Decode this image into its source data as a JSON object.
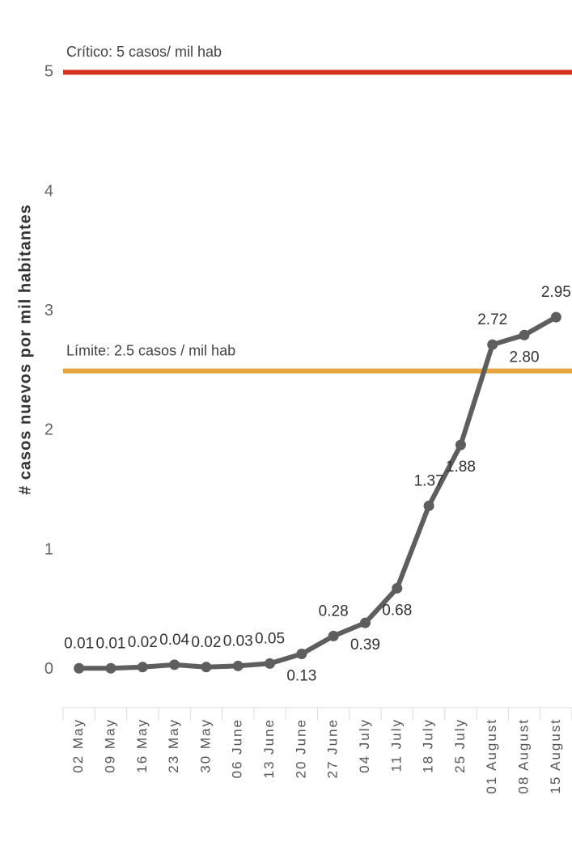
{
  "chart_data": {
    "type": "line",
    "y_label": "# casos nuevos por mil habitantes",
    "categories": [
      "02 May",
      "09 May",
      "16 May",
      "23 May",
      "30 May",
      "06 June",
      "13 June",
      "20 June",
      "27 June",
      "04 July",
      "11 July",
      "18 July",
      "25 July",
      "01 August",
      "08 August",
      "15 August"
    ],
    "series": [
      {
        "name": "casos",
        "color": "#5e5e5e",
        "values": [
          0.01,
          0.01,
          0.02,
          0.04,
          0.02,
          0.03,
          0.05,
          0.13,
          0.28,
          0.39,
          0.68,
          1.37,
          1.88,
          2.72,
          2.8,
          2.95
        ],
        "value_labels": [
          "0.01",
          "0.01",
          "0.02",
          "0.04",
          "0.02",
          "0.03",
          "0.05",
          "0.13",
          "0.28",
          "0.39",
          "0.68",
          "1.37",
          "1.88",
          "2.72",
          "2.80",
          "2.95"
        ]
      }
    ],
    "reference_lines": [
      {
        "value": 5,
        "label": "Crítico: 5 casos/ mil hab",
        "color": "#d7301f"
      },
      {
        "value": 2.5,
        "label": "Límite: 2.5 casos / mil hab",
        "color": "#e8a33a"
      }
    ],
    "ylim": [
      -0.32,
      5.47
    ],
    "yticks": [
      0,
      1,
      2,
      3,
      4,
      5
    ],
    "grid": false
  }
}
